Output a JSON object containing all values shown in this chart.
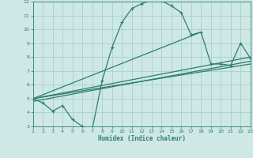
{
  "xlabel": "Humidex (Indice chaleur)",
  "bg_color": "#cde8e5",
  "line_color": "#2e7d6e",
  "grid_color": "#aacfcc",
  "xlim": [
    1,
    23
  ],
  "ylim": [
    3,
    12
  ],
  "xticks": [
    1,
    2,
    3,
    4,
    5,
    6,
    7,
    8,
    9,
    10,
    11,
    12,
    13,
    14,
    15,
    16,
    17,
    18,
    19,
    20,
    21,
    22,
    23
  ],
  "yticks": [
    3,
    4,
    5,
    6,
    7,
    8,
    9,
    10,
    11,
    12
  ],
  "curve_x": [
    1,
    2,
    3,
    4,
    5,
    6,
    7,
    8,
    9,
    10,
    11,
    12,
    13,
    14,
    15,
    16,
    17,
    18,
    19,
    20,
    21,
    22,
    23
  ],
  "curve_y": [
    5.0,
    4.7,
    4.1,
    4.5,
    3.5,
    3.0,
    2.8,
    6.3,
    8.7,
    10.5,
    11.5,
    11.85,
    12.1,
    12.05,
    11.7,
    11.2,
    9.6,
    9.8,
    7.5,
    7.5,
    7.4,
    9.0,
    7.9
  ],
  "line1_x": [
    1,
    18
  ],
  "line1_y": [
    5.0,
    9.8
  ],
  "line2_x": [
    1,
    23
  ],
  "line2_y": [
    5.0,
    7.5
  ],
  "line3_x": [
    1,
    23
  ],
  "line3_y": [
    5.0,
    8.0
  ],
  "line4_x": [
    1,
    23
  ],
  "line4_y": [
    4.8,
    7.7
  ],
  "lw": 0.9,
  "ms": 3.0
}
